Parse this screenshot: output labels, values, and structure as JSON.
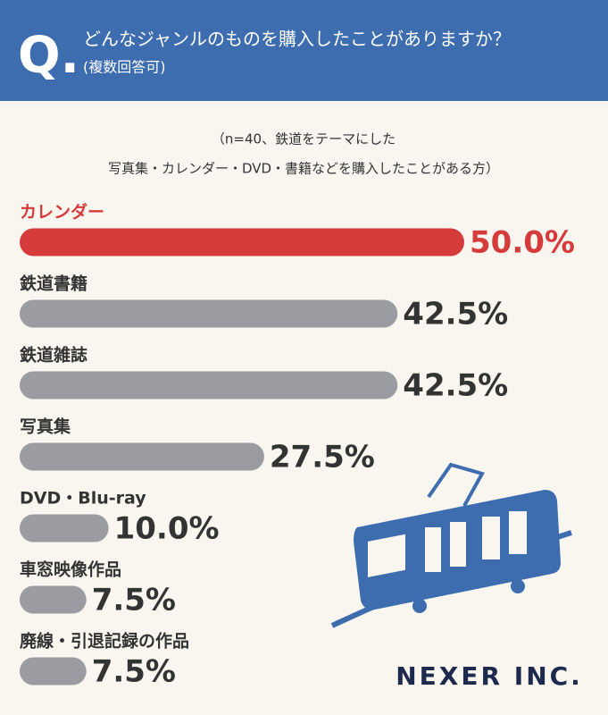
{
  "header": {
    "mark": "Q.",
    "question": "どんなジャンルのものを購入したことがありますか？",
    "note": "(複数回答可)"
  },
  "chart_data": {
    "type": "bar",
    "orientation": "horizontal",
    "subtitle": [
      "（n=40、鉄道をテーマにした",
      "写真集・カレンダー・DVD・書籍などを購入したことがある方）"
    ],
    "categories": [
      "カレンダー",
      "鉄道書籍",
      "鉄道雑誌",
      "写真集",
      "DVD・Blu-ray",
      "車窓映像作品",
      "廃線・引退記録の作品"
    ],
    "values": [
      50.0,
      42.5,
      42.5,
      27.5,
      10.0,
      7.5,
      7.5
    ],
    "value_labels": [
      "50.0%",
      "42.5%",
      "42.5%",
      "27.5%",
      "10.0%",
      "7.5%",
      "7.5%"
    ],
    "colors": [
      "#d63b3b",
      "#9b9ca1",
      "#9b9ca1",
      "#9b9ca1",
      "#9b9ca1",
      "#9b9ca1",
      "#9b9ca1"
    ]
  },
  "logo": "NEXER INC."
}
